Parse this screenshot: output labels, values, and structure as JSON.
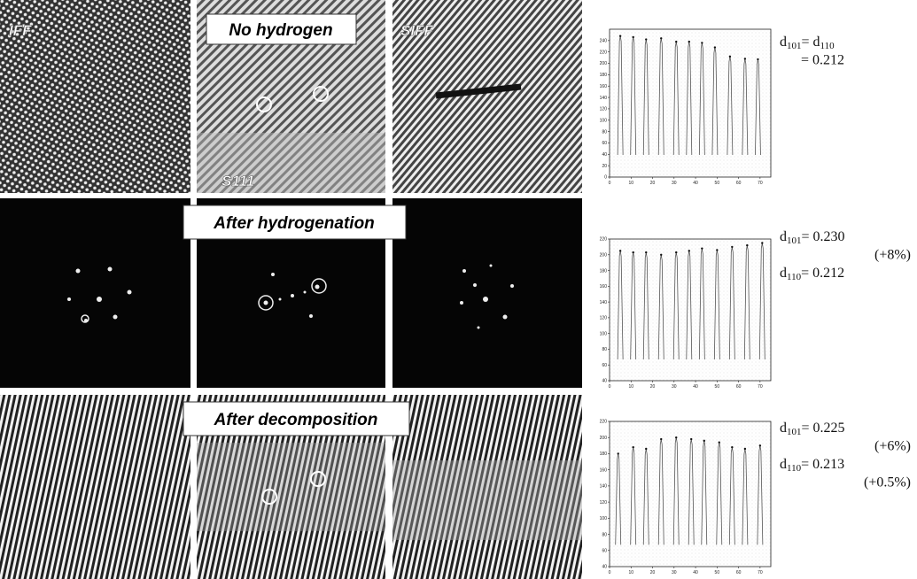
{
  "panels": {
    "labels": {
      "iff": "IFF",
      "no_hydrogen": "No hydrogen",
      "siff": "SIFF",
      "s111": "S111",
      "after_hydrogenation": "After hydrogenation",
      "after_decomposition": "After decomposition"
    }
  },
  "profiles": [
    {
      "xlim": [
        0,
        75
      ],
      "xticks": [
        0,
        10,
        20,
        30,
        40,
        50,
        60,
        70
      ],
      "ylim": [
        0,
        260
      ],
      "yticks": [
        0,
        20,
        40,
        60,
        80,
        100,
        120,
        140,
        160,
        180,
        200,
        220,
        240
      ],
      "peak_x": [
        5,
        11,
        17,
        24,
        31,
        37,
        43,
        49,
        56,
        63,
        69
      ],
      "peak_heights": [
        248,
        246,
        242,
        244,
        238,
        238,
        236,
        228,
        212,
        208,
        207
      ],
      "annotation": [
        [
          {
            "t": "d"
          },
          {
            "sub": "101"
          },
          {
            "t": "= d"
          },
          {
            "sub": "110"
          }
        ],
        [
          {
            "t": "= 0.212"
          }
        ]
      ]
    },
    {
      "xlim": [
        0,
        75
      ],
      "xticks": [
        0,
        10,
        20,
        30,
        40,
        50,
        60,
        70
      ],
      "ylim": [
        40,
        220
      ],
      "yticks": [
        40,
        60,
        80,
        100,
        120,
        140,
        160,
        180,
        200,
        220
      ],
      "peak_x": [
        5,
        11,
        17,
        24,
        31,
        37,
        43,
        50,
        57,
        64,
        71
      ],
      "peak_heights": [
        205,
        203,
        203,
        200,
        203,
        205,
        208,
        206,
        210,
        212,
        215
      ],
      "annotation": [
        [
          {
            "t": "d"
          },
          {
            "sub": "101"
          },
          {
            "t": "= 0.230"
          }
        ],
        [
          {
            "t": "(+8%)"
          }
        ],
        [
          {
            "t": "d"
          },
          {
            "sub": "110"
          },
          {
            "t": "= 0.212"
          }
        ]
      ]
    },
    {
      "xlim": [
        0,
        75
      ],
      "xticks": [
        0,
        10,
        20,
        30,
        40,
        50,
        60,
        70
      ],
      "ylim": [
        40,
        220
      ],
      "yticks": [
        40,
        60,
        80,
        100,
        120,
        140,
        160,
        180,
        200,
        220
      ],
      "peak_x": [
        4,
        11,
        17,
        24,
        31,
        38,
        44,
        51,
        57,
        63,
        70
      ],
      "peak_heights": [
        180,
        188,
        186,
        198,
        200,
        198,
        196,
        194,
        188,
        186,
        190
      ],
      "annotation": [
        [
          {
            "t": "d"
          },
          {
            "sub": "101"
          },
          {
            "t": "= 0.225"
          }
        ],
        [
          {
            "t": "(+6%)"
          }
        ],
        [
          {
            "t": "d"
          },
          {
            "sub": "110"
          },
          {
            "t": "= 0.213"
          }
        ],
        [
          {
            "t": "(+0.5%)"
          }
        ]
      ]
    }
  ]
}
